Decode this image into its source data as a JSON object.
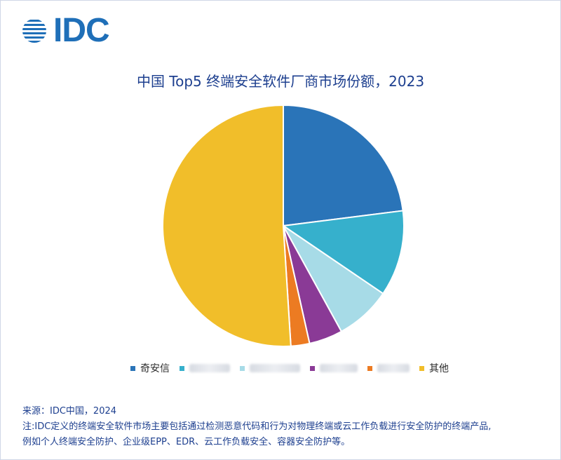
{
  "logo": {
    "text": "IDC"
  },
  "chart_data": {
    "type": "pie",
    "title": "中国 Top5 终端安全软件厂商市场份额，2023",
    "slices": [
      {
        "label": "奇安信",
        "value": 23.0,
        "color": "#2a74b8",
        "redacted": false
      },
      {
        "label": "",
        "value": 11.5,
        "color": "#36b0cc",
        "redacted": true
      },
      {
        "label": "",
        "value": 7.5,
        "color": "#a7dbe7",
        "redacted": true
      },
      {
        "label": "",
        "value": 4.5,
        "color": "#8a3a96",
        "redacted": true
      },
      {
        "label": "",
        "value": 2.5,
        "color": "#ec7b22",
        "redacted": true
      },
      {
        "label": "其他",
        "value": 51.0,
        "color": "#f1be2a",
        "redacted": false
      }
    ],
    "legend_position": "bottom"
  },
  "footer": {
    "source": "来源：IDC中国，2024",
    "note1": "注:IDC定义的终端安全软件市场主要包括通过检测恶意代码和行为对物理终端或云工作负载进行安全防护的终端产品,",
    "note2": "例如个人终端安全防护、企业级EPP、EDR、云工作负载安全、容器安全防护等。"
  }
}
